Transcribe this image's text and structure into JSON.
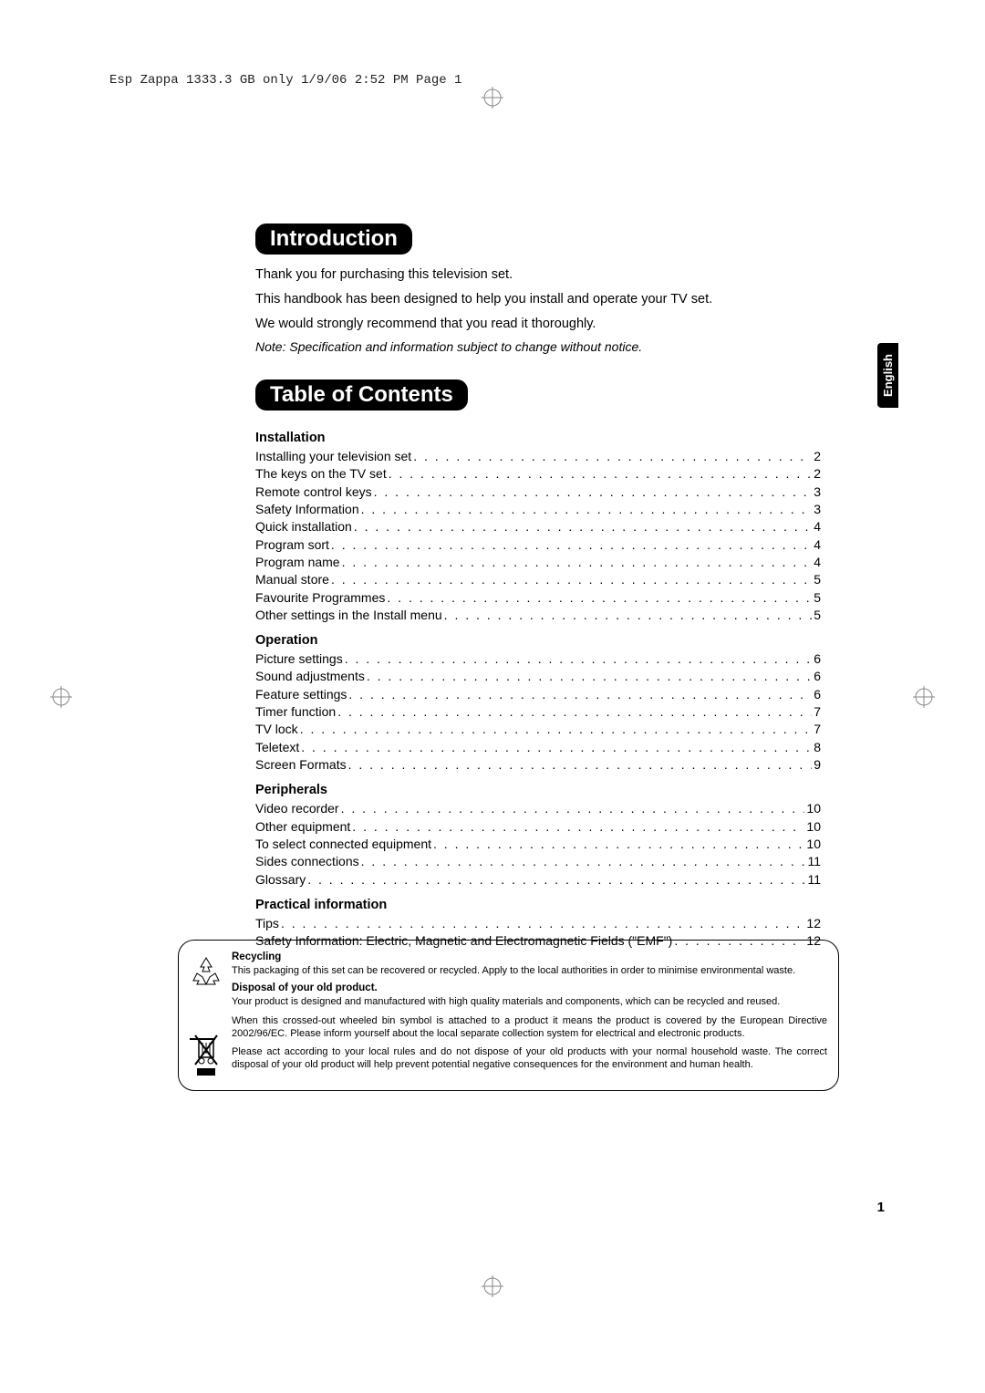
{
  "meta": {
    "headerLine": "Esp Zappa 1333.3 GB only  1/9/06  2:52 PM  Page 1"
  },
  "langTab": "English",
  "intro": {
    "heading": "Introduction",
    "line1": "Thank you for purchasing this television set.",
    "line2": "This handbook has been designed to help you install and operate your TV set.",
    "line3": "We would strongly recommend that you read it thoroughly.",
    "note": "Note: Specification and information subject to change without notice."
  },
  "toc": {
    "heading": "Table of Contents",
    "sections": [
      {
        "title": "Installation",
        "items": [
          {
            "label": "Installing your television set",
            "page": "2"
          },
          {
            "label": "The keys on the TV set",
            "page": "2"
          },
          {
            "label": "Remote control keys",
            "page": "3"
          },
          {
            "label": "Safety Information",
            "page": "3"
          },
          {
            "label": "Quick installation",
            "page": "4"
          },
          {
            "label": "Program sort",
            "page": "4"
          },
          {
            "label": "Program name",
            "page": "4"
          },
          {
            "label": "Manual store",
            "page": "5"
          },
          {
            "label": "Favourite Programmes",
            "page": "5"
          },
          {
            "label": "Other settings in the Install menu",
            "page": "5"
          }
        ]
      },
      {
        "title": "Operation",
        "items": [
          {
            "label": "Picture settings",
            "page": "6"
          },
          {
            "label": "Sound adjustments",
            "page": "6"
          },
          {
            "label": "Feature settings",
            "page": "6"
          },
          {
            "label": "Timer function",
            "page": "7"
          },
          {
            "label": "TV lock",
            "page": "7"
          },
          {
            "label": "Teletext",
            "page": "8"
          },
          {
            "label": "Screen Formats",
            "page": "9"
          }
        ]
      },
      {
        "title": "Peripherals",
        "items": [
          {
            "label": "Video recorder",
            "page": "10"
          },
          {
            "label": "Other equipment",
            "page": "10"
          },
          {
            "label": "To select connected equipment",
            "page": "10"
          },
          {
            "label": "Sides connections",
            "page": "11"
          },
          {
            "label": "Glossary",
            "page": "11"
          }
        ]
      },
      {
        "title": "Practical information",
        "items": [
          {
            "label": "Tips",
            "page": "12"
          },
          {
            "label": "Safety Information: Electric, Magnetic and Electromagnetic Fields (\"EMF\")",
            "page": "12"
          }
        ]
      }
    ]
  },
  "infoBox": {
    "recyclingTitle": "Recycling",
    "recyclingText": "This packaging of this set can be recovered or recycled. Apply to the local authorities in order to minimise environmental waste.",
    "disposalTitle": "Disposal of your old product.",
    "disposalText1": "Your product is designed and manufactured with high quality materials and components, which can be recycled and reused.",
    "disposalText2": "When this crossed-out wheeled bin symbol is attached to a product it means the product is covered by the European Directive 2002/96/EC. Please inform yourself about the local separate collection system for electrical and electronic products.",
    "disposalText3": "Please act according to your local rules and do not dispose of your old products with your normal household waste. The correct disposal of your old product will help prevent potential negative consequences for the environment and human health."
  },
  "pageNumber": "1"
}
